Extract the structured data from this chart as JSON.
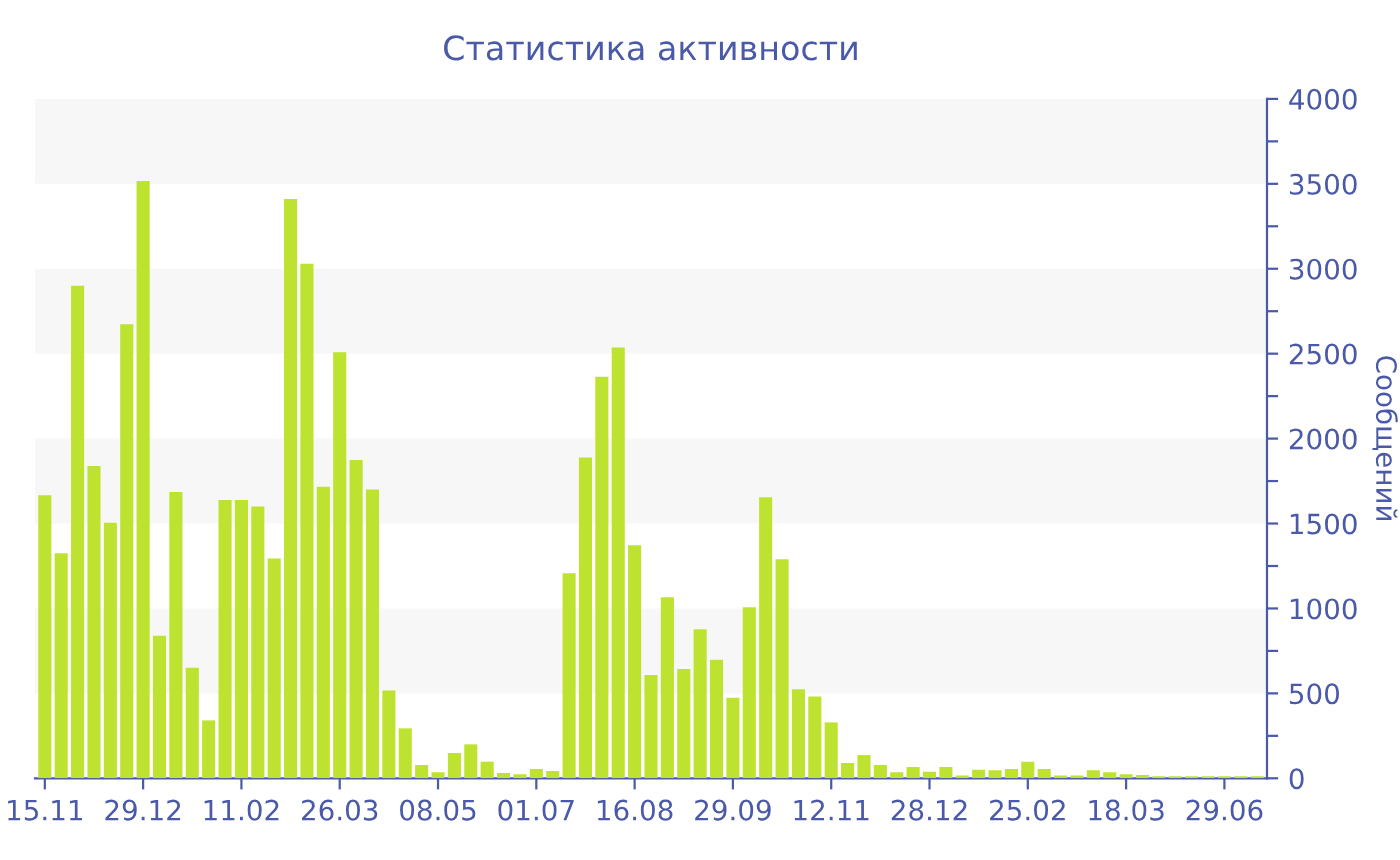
{
  "chart_data": {
    "type": "bar",
    "title": "Статистика активности",
    "ylabel": "Сообщений",
    "categories": [
      "15.11",
      null,
      null,
      null,
      null,
      null,
      "29.12",
      null,
      null,
      null,
      null,
      null,
      "11.02",
      null,
      null,
      null,
      null,
      null,
      "26.03",
      null,
      null,
      null,
      null,
      null,
      "08.05",
      null,
      null,
      null,
      null,
      null,
      "01.07",
      null,
      null,
      null,
      null,
      null,
      "16.08",
      null,
      null,
      null,
      null,
      null,
      "29.09",
      null,
      null,
      null,
      null,
      null,
      "12.11",
      null,
      null,
      null,
      null,
      null,
      "28.12",
      null,
      null,
      null,
      null,
      null,
      "25.02",
      null,
      null,
      null,
      null,
      null,
      "18.03",
      null,
      null,
      null,
      null,
      null,
      "29.06",
      null,
      null
    ],
    "values": [
      1666,
      1325,
      2900,
      1838,
      1505,
      2673,
      3516,
      839,
      1686,
      651,
      341,
      1639,
      1639,
      1600,
      1294,
      3410,
      3030,
      1717,
      2509,
      1874,
      1701,
      517,
      294,
      78,
      35,
      149,
      200,
      98,
      31,
      24,
      55,
      43,
      1207,
      1889,
      2364,
      2536,
      1372,
      608,
      1066,
      643,
      878,
      698,
      474,
      1007,
      1654,
      1290,
      525,
      482,
      329,
      90,
      137,
      78,
      35,
      67,
      39,
      67,
      16,
      51,
      47,
      55,
      98,
      55,
      16,
      16,
      47,
      35,
      24,
      20,
      12,
      12,
      12,
      12,
      12,
      12,
      12
    ],
    "color": "#bde330",
    "ylim": [
      0,
      4000
    ],
    "yticks": [
      0,
      {
        "value": 250,
        "label": null
      },
      500,
      {
        "value": 750,
        "label": null
      },
      1000,
      {
        "value": 1250,
        "label": null
      },
      1500,
      {
        "value": 1750,
        "label": null
      },
      2000,
      {
        "value": 2250,
        "label": null
      },
      2500,
      {
        "value": 2750,
        "label": null
      },
      3000,
      {
        "value": 3250,
        "label": null
      },
      3500,
      {
        "value": 3750,
        "label": null
      },
      4000
    ],
    "bands": [
      {
        "axis": "y",
        "from": 500,
        "to": 1000,
        "color": "#f7f7f7"
      },
      {
        "axis": "y",
        "from": 1500,
        "to": 2000,
        "color": "#f7f7f7"
      },
      {
        "axis": "y",
        "from": 2500,
        "to": 3000,
        "color": "#f7f7f7"
      },
      {
        "axis": "y",
        "from": 3500,
        "to": 4000,
        "color": "#f7f7f7"
      }
    ],
    "grid": false,
    "legend": false
  }
}
